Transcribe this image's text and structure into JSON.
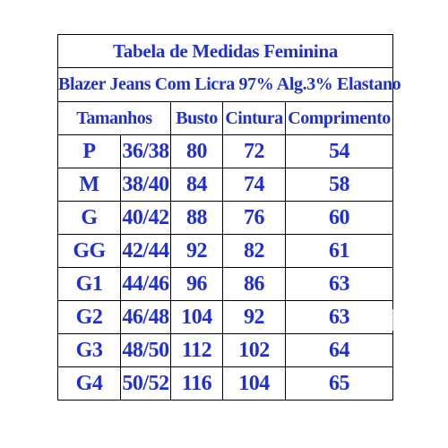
{
  "table": {
    "title": "Tabela de Medidas Feminina",
    "subtitle": "Blazer Jeans Com Licra 97% Alg.3% Elastano",
    "headers": {
      "tamanhos": "Tamanhos",
      "busto": "Busto",
      "cintura": "Cintura",
      "comprimento": "Comprimento"
    },
    "rows": [
      {
        "size": "P",
        "range": "36/38",
        "busto": "80",
        "cintura": "72",
        "comprimento": "54"
      },
      {
        "size": "M",
        "range": "38/40",
        "busto": "84",
        "cintura": "74",
        "comprimento": "58"
      },
      {
        "size": "G",
        "range": "40/42",
        "busto": "88",
        "cintura": "76",
        "comprimento": "60"
      },
      {
        "size": "GG",
        "range": "42/44",
        "busto": "92",
        "cintura": "82",
        "comprimento": "61"
      },
      {
        "size": "G1",
        "range": "44/46",
        "busto": "96",
        "cintura": "86",
        "comprimento": "63"
      },
      {
        "size": "G2",
        "range": "46/48",
        "busto": "104",
        "cintura": "92",
        "comprimento": "63"
      },
      {
        "size": "G3",
        "range": "48/50",
        "busto": "112",
        "cintura": "102",
        "comprimento": "64"
      },
      {
        "size": "G4",
        "range": "50/52",
        "busto": "116",
        "cintura": "104",
        "comprimento": "65"
      }
    ]
  },
  "colors": {
    "text": "#1f2fd0",
    "border": "#000000",
    "background": "#ffffff"
  }
}
